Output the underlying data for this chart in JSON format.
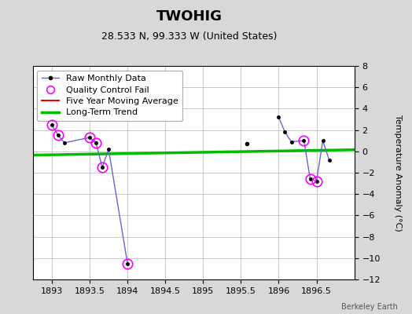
{
  "title": "TWOHIG",
  "subtitle": "28.533 N, 99.333 W (United States)",
  "ylabel": "Temperature Anomaly (°C)",
  "credit": "Berkeley Earth",
  "xlim": [
    1892.75,
    1897.0
  ],
  "ylim": [
    -12,
    8
  ],
  "xticks": [
    1893,
    1893.5,
    1894,
    1894.5,
    1895,
    1895.5,
    1896,
    1896.5
  ],
  "yticks": [
    -12,
    -10,
    -8,
    -6,
    -4,
    -2,
    0,
    2,
    4,
    6,
    8
  ],
  "segment1_x": [
    1893.0,
    1893.083,
    1893.167,
    1893.5,
    1893.583,
    1893.667,
    1893.75,
    1894.0
  ],
  "segment1_y": [
    2.5,
    1.5,
    0.8,
    1.3,
    0.8,
    -1.5,
    0.2,
    -10.5
  ],
  "segment2_x": [
    1896.0,
    1896.083,
    1896.167,
    1896.333,
    1896.417,
    1896.5,
    1896.583,
    1896.667
  ],
  "segment2_y": [
    3.2,
    1.8,
    0.9,
    1.0,
    -2.6,
    -2.8,
    1.0,
    -0.8
  ],
  "isolated_x": [
    1895.583
  ],
  "isolated_y": [
    0.7
  ],
  "qc_fail_x": [
    1893.0,
    1893.083,
    1893.5,
    1893.583,
    1893.667,
    1894.0,
    1896.333,
    1896.417,
    1896.5
  ],
  "qc_fail_y": [
    2.5,
    1.5,
    1.3,
    0.8,
    -1.5,
    -10.5,
    1.0,
    -2.6,
    -2.8
  ],
  "trend_x": [
    1892.75,
    1897.0
  ],
  "trend_y": [
    -0.35,
    0.15
  ],
  "raw_line_color": "#6666cc",
  "raw_marker_color": "#000000",
  "qc_color": "#ff00ff",
  "trend_color": "#00bb00",
  "mavg_color": "#ff0000",
  "background_color": "#d8d8d8",
  "plot_background": "#ffffff",
  "grid_color": "#c0c0c0",
  "legend_fontsize": 8,
  "title_fontsize": 13,
  "subtitle_fontsize": 9
}
